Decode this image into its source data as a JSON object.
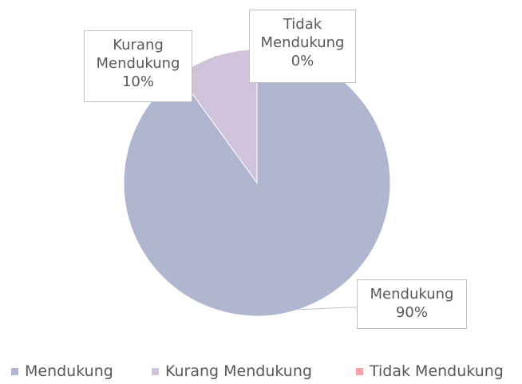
{
  "chart_data": {
    "type": "pie",
    "categories": [
      "Mendukung",
      "Kurang Mendukung",
      "Tidak Mendukung"
    ],
    "values": [
      90,
      10,
      0
    ],
    "value_labels": [
      "90%",
      "10%",
      "0%"
    ],
    "colors": [
      "#b0b5d0",
      "#d1c3dc",
      "#f4a0a6"
    ],
    "legend": "bottom"
  }
}
